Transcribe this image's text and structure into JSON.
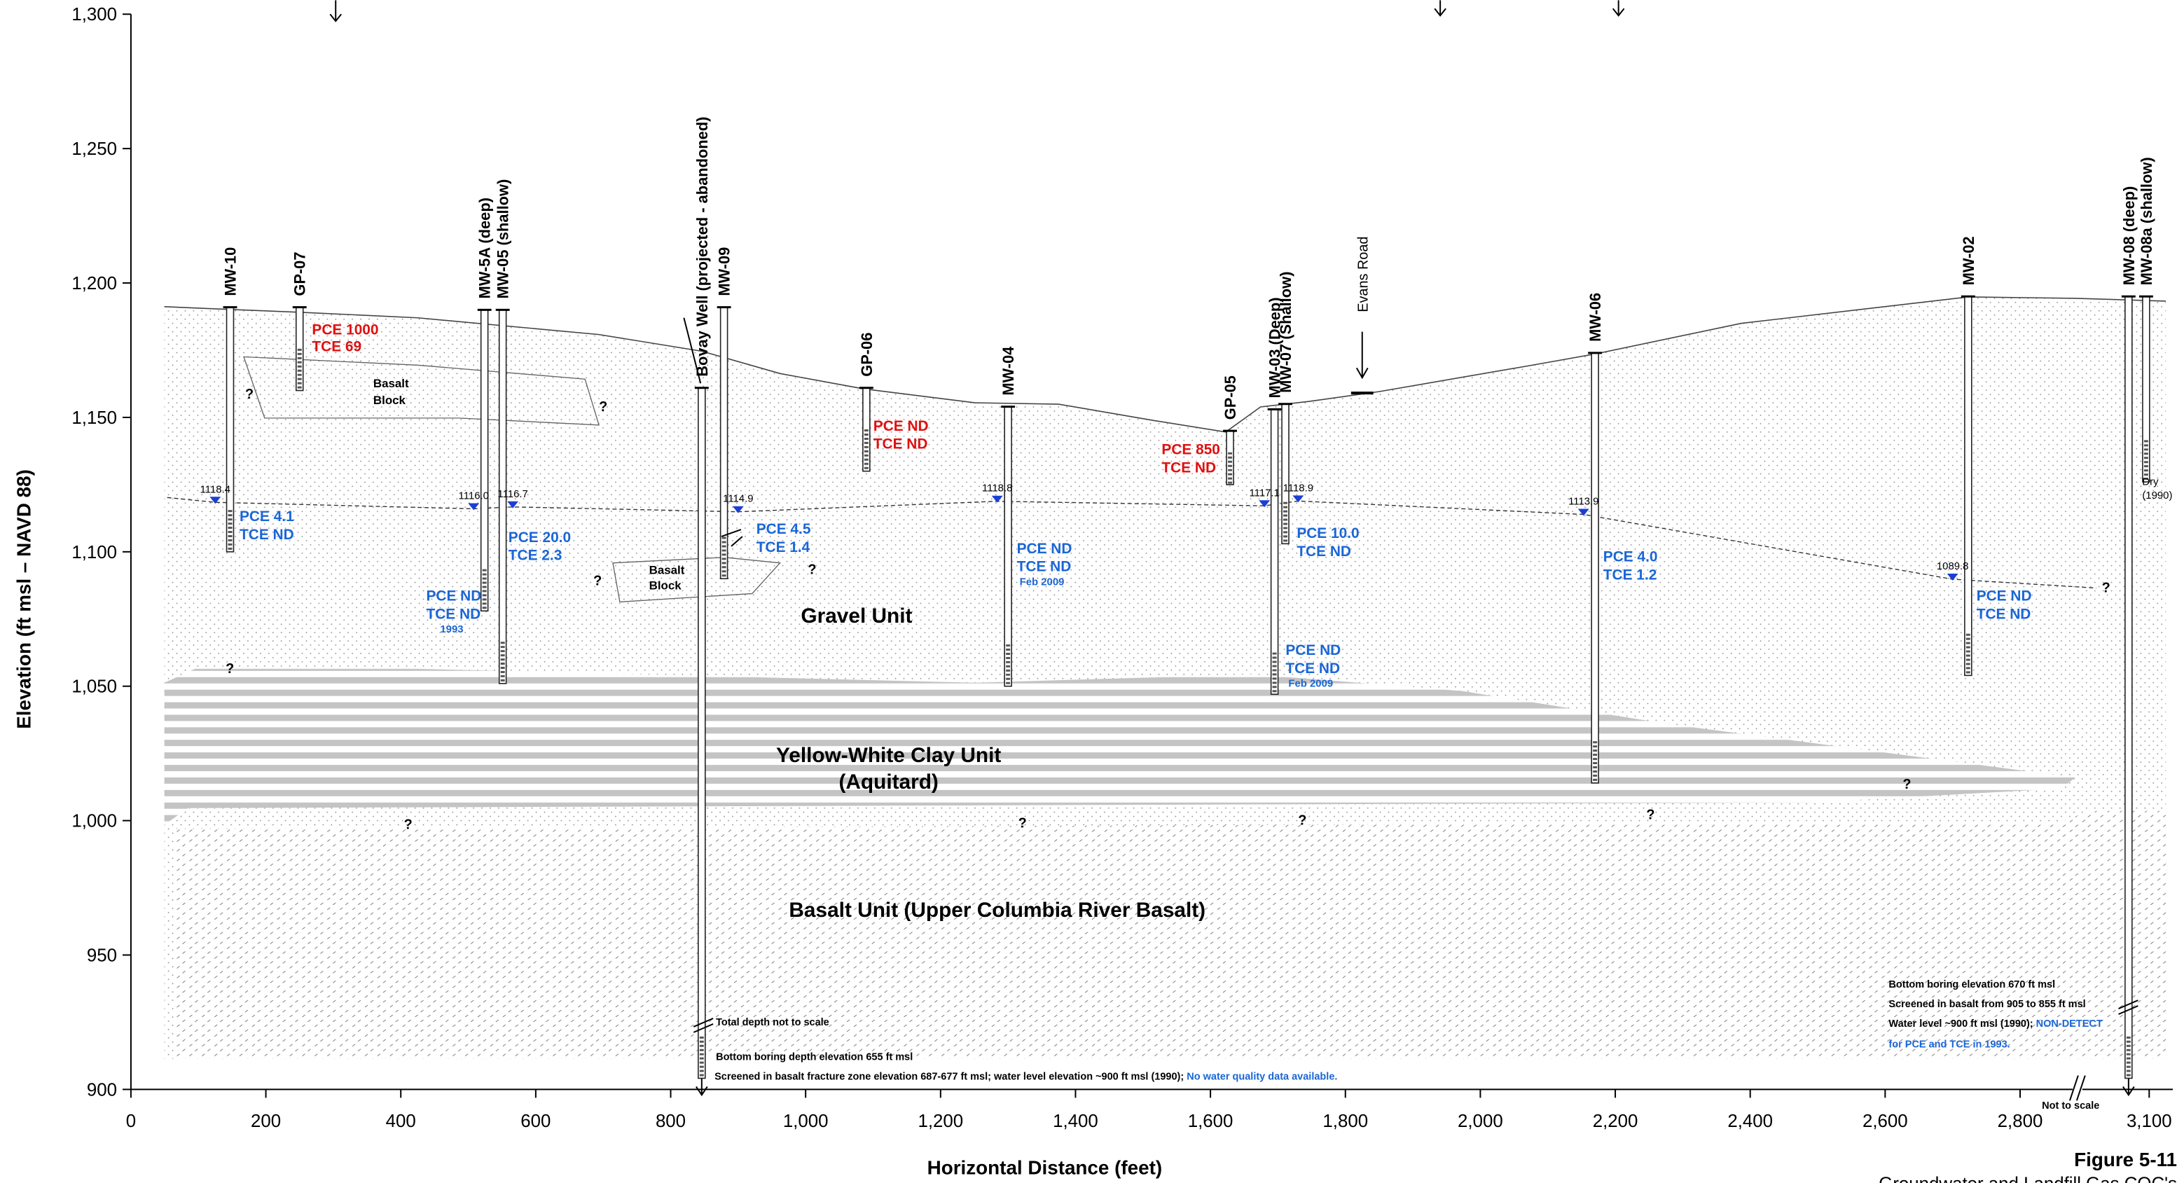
{
  "chart_data": {
    "type": "cross-section",
    "x_axis": {
      "label": "Horizontal Distance (feet)",
      "xlim": [
        0,
        3100
      ],
      "xticks": [
        0,
        200,
        400,
        600,
        800,
        {
          "value": 1000,
          "label": "1,000"
        },
        {
          "value": 1200,
          "label": "1,200"
        },
        {
          "value": 1400,
          "label": "1,400"
        },
        {
          "value": 1600,
          "label": "1,600"
        },
        {
          "value": 1800,
          "label": "1,800"
        },
        {
          "value": 2000,
          "label": "2,000"
        },
        {
          "value": 2200,
          "label": "2,200"
        },
        {
          "value": 2400,
          "label": "2,400"
        },
        {
          "value": 2600,
          "label": "2,600"
        },
        {
          "value": 2800,
          "label": "2,800"
        },
        {
          "value": 3100,
          "label": "3,100"
        }
      ]
    },
    "y_axis": {
      "label": "Elevation (ft msl – NAVD 88)",
      "ylim": [
        900,
        1300
      ],
      "yticks": [
        900,
        950,
        {
          "value": 1000,
          "label": "1,000"
        },
        {
          "value": 1050,
          "label": "1,050"
        },
        {
          "value": 1100,
          "label": "1,100"
        },
        {
          "value": 1150,
          "label": "1,150"
        },
        {
          "value": 1200,
          "label": "1,200"
        },
        {
          "value": 1250,
          "label": "1,250"
        },
        {
          "value": 1300,
          "label": "1,300"
        }
      ]
    },
    "wells": [
      {
        "label": "MW-10",
        "x": 147,
        "top": 1191,
        "bottom": 1100
      },
      {
        "label": "GP-07",
        "x": 250,
        "top": 1191,
        "bottom": 1160
      },
      {
        "label": "MW-5A (deep)",
        "x": 524,
        "top": 1190,
        "bottom": 1078
      },
      {
        "label": "MW-05 (shallow)",
        "x": 551,
        "top": 1190,
        "bottom": 1051
      },
      {
        "label": "Bovay Well (projected - abandoned)",
        "x": 846,
        "top": 1161
      },
      {
        "label": "MW-09",
        "x": 879,
        "top": 1191,
        "bottom": 1090
      },
      {
        "label": "GP-06",
        "x": 1090,
        "top": 1161,
        "bottom": 1130
      },
      {
        "label": "MW-04",
        "x": 1300,
        "top": 1154,
        "bottom": 1050
      },
      {
        "label": "GP-05",
        "x": 1629,
        "top": 1145,
        "bottom": 1125
      },
      {
        "label": "MW-03 (Deep)",
        "x": 1695,
        "top": 1153,
        "bottom": 1047
      },
      {
        "label": "MW-07 (Shallow)",
        "x": 1711,
        "top": 1155,
        "bottom": 1103
      },
      {
        "label": "MW-06",
        "x": 2170,
        "top": 1174,
        "bottom": 1014
      },
      {
        "label": "MW-02",
        "x": 2723,
        "top": 1195,
        "bottom": 1054
      },
      {
        "label": "MW-08 (deep)",
        "x": 3033,
        "top": 1195
      },
      {
        "label": "MW-08a (shallow)",
        "x": 3090,
        "top": 1195,
        "bottom": 1126
      }
    ],
    "water_levels": [
      {
        "x": 125,
        "elevation": 1118.4
      },
      {
        "x": 508,
        "elevation": {
          "value": 1116,
          "label": "1116.0"
        }
      },
      {
        "x": 566,
        "elevation": 1116.7
      },
      {
        "x": 900,
        "elevation": 1114.9
      },
      {
        "x": 1284,
        "elevation": 1118.8
      },
      {
        "x": 1680,
        "elevation": 1117.1
      },
      {
        "x": 1730,
        "elevation": 1118.9
      },
      {
        "x": 2153,
        "elevation": 1113.9
      },
      {
        "x": 2700,
        "elevation": 1089.8
      }
    ],
    "annotations": {
      "gp07": [
        "PCE 1000",
        "TCE 69"
      ],
      "mw10": [
        "PCE 4.1",
        "TCE ND"
      ],
      "mw05": [
        "PCE 20.0",
        "TCE 2.3"
      ],
      "mw5a": [
        "PCE ND",
        "TCE ND",
        "1993"
      ],
      "mw09": [
        "PCE 4.5",
        "TCE 1.4"
      ],
      "gp06": [
        "PCE ND",
        "TCE ND"
      ],
      "mw04": [
        "PCE ND",
        "TCE ND",
        "Feb 2009"
      ],
      "gp05": [
        "PCE 850",
        "TCE ND"
      ],
      "mw07": [
        "PCE 10.0",
        "TCE ND"
      ],
      "mw03": [
        "PCE ND",
        "TCE ND",
        "Feb 2009"
      ],
      "mw06": [
        "PCE 4.0",
        "TCE 1.2"
      ],
      "mw02": [
        "PCE ND",
        "TCE ND"
      ],
      "mw08a": [
        "Dry",
        "(1990)"
      ]
    },
    "units": {
      "basalt_block": [
        "Basalt",
        "Block"
      ],
      "gravel": "Gravel Unit",
      "clay": [
        "Yellow-White Clay Unit",
        "(Aquitard)"
      ],
      "basalt": "Basalt Unit (Upper Columbia River Basalt)"
    },
    "road": "Evans Road",
    "uncertain": "?",
    "bovay_notes": [
      "Total depth not to scale",
      "Bottom boring depth elevation 655 ft msl",
      "Screened in basalt fracture zone elevation 687-677 ft msl; water level elevation ~900 ft msl (1990); ",
      "No water quality data available."
    ],
    "mw08_notes": [
      "Bottom boring elevation 670 ft msl",
      "Screened in basalt from 905 to 855 ft msl",
      "Water level ~900 ft msl (1990); ",
      "NON-DETECT",
      "for PCE and TCE in 1993."
    ],
    "not_to_scale": "Not to scale",
    "figure": "Figure 5-11",
    "figure_title": "Groundwater and Landfill Gas COC's"
  }
}
